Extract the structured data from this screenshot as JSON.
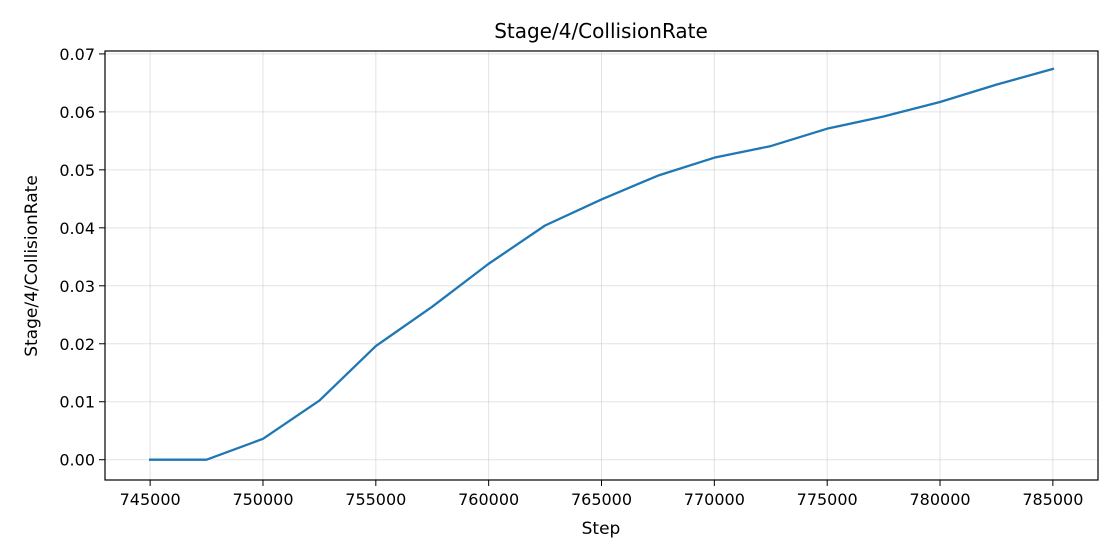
{
  "chart_data": {
    "type": "line",
    "title": "Stage/4/CollisionRate",
    "xlabel": "Step",
    "ylabel": "Stage/4/CollisionRate",
    "xlim": [
      743000,
      787000
    ],
    "ylim": [
      -0.0035,
      0.0705
    ],
    "xticks": [
      745000,
      750000,
      755000,
      760000,
      765000,
      770000,
      775000,
      780000,
      785000
    ],
    "xtick_labels": [
      "745000",
      "750000",
      "755000",
      "760000",
      "765000",
      "770000",
      "775000",
      "780000",
      "785000"
    ],
    "yticks": [
      0.0,
      0.01,
      0.02,
      0.03,
      0.04,
      0.05,
      0.06,
      0.07
    ],
    "ytick_labels": [
      "0.00",
      "0.01",
      "0.02",
      "0.03",
      "0.04",
      "0.05",
      "0.06",
      "0.07"
    ],
    "grid": true,
    "series": [
      {
        "color": "#1f77b4",
        "x": [
          745000,
          747500,
          750000,
          752500,
          755000,
          757500,
          760000,
          762500,
          765000,
          767500,
          770000,
          772500,
          775000,
          777500,
          780000,
          782500,
          785000
        ],
        "y": [
          0.0,
          0.0,
          0.0036,
          0.0102,
          0.0196,
          0.0264,
          0.0338,
          0.0404,
          0.0449,
          0.049,
          0.0521,
          0.0541,
          0.0571,
          0.0592,
          0.0617,
          0.0647,
          0.0674
        ]
      }
    ]
  }
}
